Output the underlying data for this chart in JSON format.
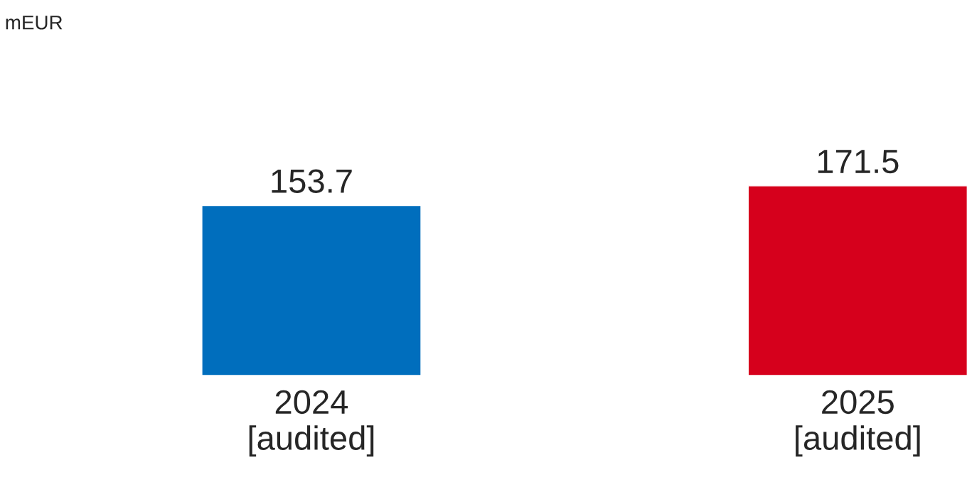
{
  "chart_data": {
    "type": "bar",
    "annotations": [
      "mEUR"
    ],
    "categories": [
      "2024\n[audited]",
      "2025\n[audited]"
    ],
    "values": [
      153.7,
      171.5
    ],
    "colors": [
      "#006ebd",
      "#d6001c"
    ],
    "data_labels": true,
    "grid": false,
    "legend": false
  }
}
